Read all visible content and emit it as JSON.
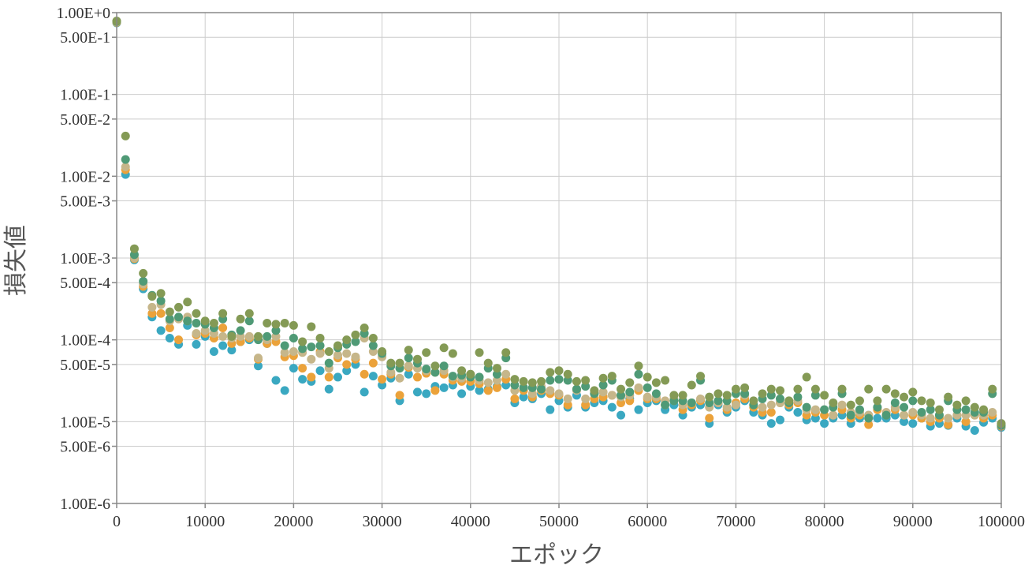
{
  "chart_data": {
    "type": "scatter",
    "title": "",
    "xlabel": "エポック",
    "ylabel": "損失値",
    "xlim": [
      0,
      100000
    ],
    "ylim": [
      1e-06,
      1
    ],
    "yscale": "log",
    "grid": true,
    "legend": "none",
    "x_ticks": [
      "0",
      "10000",
      "20000",
      "30000",
      "40000",
      "50000",
      "60000",
      "70000",
      "80000",
      "90000",
      "100000"
    ],
    "y_ticks": [
      {
        "value": 1,
        "label": "1.00E+0"
      },
      {
        "value": 0.5,
        "label": "5.00E-1"
      },
      {
        "value": 0.1,
        "label": "1.00E-1"
      },
      {
        "value": 0.05,
        "label": "5.00E-2"
      },
      {
        "value": 0.01,
        "label": "1.00E-2"
      },
      {
        "value": 0.005,
        "label": "5.00E-3"
      },
      {
        "value": 0.001,
        "label": "1.00E-3"
      },
      {
        "value": 0.0005,
        "label": "5.00E-4"
      },
      {
        "value": 0.0001,
        "label": "1.00E-4"
      },
      {
        "value": 5e-05,
        "label": "5.00E-5"
      },
      {
        "value": 1e-05,
        "label": "1.00E-5"
      },
      {
        "value": 5e-06,
        "label": "5.00E-6"
      },
      {
        "value": 1e-06,
        "label": "1.00E-6"
      }
    ],
    "colors": {
      "grid": "#cccccc",
      "axis": "#888888"
    },
    "series": [
      {
        "color": "#3aa8c1",
        "x": [
          0,
          1000,
          2000,
          3000,
          4000,
          5000,
          6000,
          7000,
          8000,
          9000,
          10000,
          11000,
          12000,
          13000,
          14000,
          15000,
          16000,
          17000,
          18000,
          19000,
          20000,
          21000,
          22000,
          23000,
          24000,
          25000,
          26000,
          27000,
          28000,
          29000,
          30000,
          31000,
          32000,
          33000,
          34000,
          35000,
          36000,
          37000,
          38000,
          39000,
          40000,
          41000,
          42000,
          43000,
          44000,
          45000,
          46000,
          47000,
          48000,
          49000,
          50000,
          51000,
          52000,
          53000,
          54000,
          55000,
          56000,
          57000,
          58000,
          59000,
          60000,
          61000,
          62000,
          63000,
          64000,
          65000,
          66000,
          67000,
          68000,
          69000,
          70000,
          71000,
          72000,
          73000,
          74000,
          75000,
          76000,
          77000,
          78000,
          79000,
          80000,
          81000,
          82000,
          83000,
          84000,
          85000,
          86000,
          87000,
          88000,
          89000,
          90000,
          91000,
          92000,
          93000,
          94000,
          95000,
          96000,
          97000,
          98000,
          99000,
          100000
        ],
        "y": [
          0.75,
          0.0105,
          0.00095,
          0.00042,
          0.00019,
          0.00013,
          0.000105,
          8.8e-05,
          0.00015,
          8.8e-05,
          0.00011,
          7.2e-05,
          8.5e-05,
          7.5e-05,
          9.5e-05,
          0.0001,
          4.8e-05,
          9e-05,
          3.2e-05,
          2.4e-05,
          4.5e-05,
          3.3e-05,
          3.1e-05,
          4.2e-05,
          2.5e-05,
          3.5e-05,
          4.2e-05,
          5e-05,
          2.3e-05,
          3.6e-05,
          2.8e-05,
          3.4e-05,
          1.8e-05,
          3.8e-05,
          2.3e-05,
          2.2e-05,
          2.7e-05,
          2.6e-05,
          2.8e-05,
          2.2e-05,
          2.7e-05,
          2.4e-05,
          2.5e-05,
          2.7e-05,
          2.8e-05,
          1.7e-05,
          2e-05,
          1.9e-05,
          2.2e-05,
          1.4e-05,
          1.8e-05,
          1.5e-05,
          2.1e-05,
          1.5e-05,
          1.7e-05,
          1.8e-05,
          1.5e-05,
          1.2e-05,
          1.9e-05,
          1.4e-05,
          1.7e-05,
          1.8e-05,
          1.4e-05,
          1.6e-05,
          1.2e-05,
          1.5e-05,
          1.6e-05,
          9.5e-06,
          1.6e-05,
          1.3e-05,
          1.5e-05,
          1.8e-05,
          1.3e-05,
          1.2e-05,
          9.5e-06,
          1.05e-05,
          1.5e-05,
          1.3e-05,
          1.05e-05,
          1.1e-05,
          9.5e-06,
          1.1e-05,
          1.2e-05,
          9.5e-06,
          1.1e-05,
          1.2e-05,
          1.1e-05,
          1.1e-05,
          1.2e-05,
          1e-05,
          9.5e-06,
          1.1e-05,
          8.8e-06,
          9.5e-06,
          9e-06,
          1.1e-05,
          8.8e-06,
          7.8e-06,
          9.8e-06,
          1.1e-05,
          8.5e-06
        ]
      },
      {
        "color": "#eba23a",
        "x": [
          0,
          1000,
          2000,
          3000,
          4000,
          5000,
          6000,
          7000,
          8000,
          9000,
          10000,
          11000,
          12000,
          13000,
          14000,
          15000,
          16000,
          17000,
          18000,
          19000,
          20000,
          21000,
          22000,
          23000,
          24000,
          25000,
          26000,
          27000,
          28000,
          29000,
          30000,
          31000,
          32000,
          33000,
          34000,
          35000,
          36000,
          37000,
          38000,
          39000,
          40000,
          41000,
          42000,
          43000,
          44000,
          45000,
          46000,
          47000,
          48000,
          49000,
          50000,
          51000,
          52000,
          53000,
          54000,
          55000,
          56000,
          57000,
          58000,
          59000,
          60000,
          61000,
          62000,
          63000,
          64000,
          65000,
          66000,
          67000,
          68000,
          69000,
          70000,
          71000,
          72000,
          73000,
          74000,
          75000,
          76000,
          77000,
          78000,
          79000,
          80000,
          81000,
          82000,
          83000,
          84000,
          85000,
          86000,
          87000,
          88000,
          89000,
          90000,
          91000,
          92000,
          93000,
          94000,
          95000,
          96000,
          97000,
          98000,
          99000,
          100000
        ],
        "y": [
          0.76,
          0.012,
          0.00098,
          0.00045,
          0.00021,
          0.00021,
          0.00014,
          0.0001,
          0.00017,
          0.000115,
          0.00012,
          0.000105,
          0.00014,
          9e-05,
          9.5e-05,
          0.000105,
          5.8e-05,
          9e-05,
          9.5e-05,
          6.2e-05,
          6.4e-05,
          4.5e-05,
          3.5e-05,
          7.2e-05,
          3.5e-05,
          6e-05,
          5e-05,
          5.8e-05,
          3.8e-05,
          5.2e-05,
          3.3e-05,
          3.8e-05,
          2.1e-05,
          4.6e-05,
          3.5e-05,
          3.9e-05,
          2.4e-05,
          3.8e-05,
          3.2e-05,
          3.1e-05,
          3.1e-05,
          2.9e-05,
          2.4e-05,
          2.6e-05,
          3.3e-05,
          1.9e-05,
          2.4e-05,
          2e-05,
          2.4e-05,
          2.2e-05,
          2.1e-05,
          1.6e-05,
          2.5e-05,
          1.6e-05,
          1.9e-05,
          2e-05,
          2.1e-05,
          1.7e-05,
          1.8e-05,
          2.4e-05,
          1.9e-05,
          1.9e-05,
          1.6e-05,
          1.8e-05,
          1.4e-05,
          1.6e-05,
          1.8e-05,
          1.1e-05,
          1.7e-05,
          1.4e-05,
          1.7e-05,
          1.9e-05,
          1.5e-05,
          1.3e-05,
          1.3e-05,
          1.7e-05,
          1.6e-05,
          1.7e-05,
          1.2e-05,
          1.3e-05,
          1.2e-05,
          1.2e-05,
          1.4e-05,
          1.1e-05,
          1.2e-05,
          9.2e-06,
          1.4e-05,
          1.2e-05,
          1.4e-05,
          1.2e-05,
          1.2e-05,
          1.1e-05,
          1e-05,
          1.1e-05,
          9.2e-06,
          1.2e-05,
          1e-05,
          1.2e-05,
          1.1e-05,
          1.2e-05,
          8.8e-06
        ]
      },
      {
        "color": "#c6b68a",
        "x": [
          0,
          1000,
          2000,
          3000,
          4000,
          5000,
          6000,
          7000,
          8000,
          9000,
          10000,
          11000,
          12000,
          13000,
          14000,
          15000,
          16000,
          17000,
          18000,
          19000,
          20000,
          21000,
          22000,
          23000,
          24000,
          25000,
          26000,
          27000,
          28000,
          29000,
          30000,
          31000,
          32000,
          33000,
          34000,
          35000,
          36000,
          37000,
          38000,
          39000,
          40000,
          41000,
          42000,
          43000,
          44000,
          45000,
          46000,
          47000,
          48000,
          49000,
          50000,
          51000,
          52000,
          53000,
          54000,
          55000,
          56000,
          57000,
          58000,
          59000,
          60000,
          61000,
          62000,
          63000,
          64000,
          65000,
          66000,
          67000,
          68000,
          69000,
          70000,
          71000,
          72000,
          73000,
          74000,
          75000,
          76000,
          77000,
          78000,
          79000,
          80000,
          81000,
          82000,
          83000,
          84000,
          85000,
          86000,
          87000,
          88000,
          89000,
          90000,
          91000,
          92000,
          93000,
          94000,
          95000,
          96000,
          97000,
          98000,
          99000,
          100000
        ],
        "y": [
          0.77,
          0.013,
          0.001,
          0.00048,
          0.00025,
          0.00027,
          0.00017,
          0.00018,
          0.00019,
          0.00012,
          0.00013,
          0.00012,
          0.00011,
          0.000105,
          0.00011,
          0.00011,
          6e-05,
          0.0001,
          0.00011,
          7e-05,
          7.2e-05,
          7e-05,
          5.8e-05,
          6.8e-05,
          4.5e-05,
          6.5e-05,
          6.8e-05,
          6.2e-05,
          0.000105,
          7.2e-05,
          6.2e-05,
          4e-05,
          3.4e-05,
          4.8e-05,
          4.5e-05,
          4.2e-05,
          4e-05,
          4.2e-05,
          3.5e-05,
          3.4e-05,
          3.8e-05,
          3.2e-05,
          3e-05,
          3.2e-05,
          3.8e-05,
          2.4e-05,
          2.6e-05,
          2.2e-05,
          2.7e-05,
          2.4e-05,
          2.2e-05,
          1.9e-05,
          2.4e-05,
          1.9e-05,
          2.2e-05,
          2.3e-05,
          2.1e-05,
          2e-05,
          2.1e-05,
          2.6e-05,
          2e-05,
          2e-05,
          1.8e-05,
          1.9e-05,
          1.6e-05,
          1.7e-05,
          1.9e-05,
          1.5e-05,
          1.7e-05,
          1.5e-05,
          1.6e-05,
          2.1e-05,
          1.6e-05,
          1.5e-05,
          1.6e-05,
          1.7e-05,
          1.7e-05,
          1.8e-05,
          1.4e-05,
          1.4e-05,
          1.4e-05,
          1.2e-05,
          1.6e-05,
          1.3e-05,
          1.3e-05,
          1.2e-05,
          1.5e-05,
          1.3e-05,
          1.5e-05,
          1.2e-05,
          1.3e-05,
          1.2e-05,
          1.1e-05,
          1.2e-05,
          1.1e-05,
          1.2e-05,
          1.2e-05,
          1.2e-05,
          1.2e-05,
          1.3e-05,
          9.2e-06
        ]
      },
      {
        "color": "#4f9a76",
        "x": [
          0,
          1000,
          2000,
          3000,
          4000,
          5000,
          6000,
          7000,
          8000,
          9000,
          10000,
          11000,
          12000,
          13000,
          14000,
          15000,
          16000,
          17000,
          18000,
          19000,
          20000,
          21000,
          22000,
          23000,
          24000,
          25000,
          26000,
          27000,
          28000,
          29000,
          30000,
          31000,
          32000,
          33000,
          34000,
          35000,
          36000,
          37000,
          38000,
          39000,
          40000,
          41000,
          42000,
          43000,
          44000,
          45000,
          46000,
          47000,
          48000,
          49000,
          50000,
          51000,
          52000,
          53000,
          54000,
          55000,
          56000,
          57000,
          58000,
          59000,
          60000,
          61000,
          62000,
          63000,
          64000,
          65000,
          66000,
          67000,
          68000,
          69000,
          70000,
          71000,
          72000,
          73000,
          74000,
          75000,
          76000,
          77000,
          78000,
          79000,
          80000,
          81000,
          82000,
          83000,
          84000,
          85000,
          86000,
          87000,
          88000,
          89000,
          90000,
          91000,
          92000,
          93000,
          94000,
          95000,
          96000,
          97000,
          98000,
          99000,
          100000
        ],
        "y": [
          0.78,
          0.016,
          0.0011,
          0.00052,
          0.00035,
          0.0003,
          0.00018,
          0.00019,
          0.00017,
          0.00016,
          0.000155,
          0.00014,
          0.00018,
          0.000115,
          0.00013,
          0.00017,
          0.0001,
          0.00011,
          0.00013,
          8.5e-05,
          0.000105,
          7.8e-05,
          8.2e-05,
          8.5e-05,
          5.2e-05,
          8e-05,
          8.8e-05,
          9.5e-05,
          0.00012,
          8.5e-05,
          6.8e-05,
          4.8e-05,
          4.5e-05,
          6e-05,
          5.2e-05,
          4.4e-05,
          4e-05,
          4.8e-05,
          3.6e-05,
          3.7e-05,
          3.5e-05,
          3.5e-05,
          4.5e-05,
          3.8e-05,
          6e-05,
          2.8e-05,
          2.6e-05,
          2.6e-05,
          2.5e-05,
          3.2e-05,
          3.3e-05,
          3.2e-05,
          2.5e-05,
          2.7e-05,
          2.2e-05,
          2.8e-05,
          3.2e-05,
          2.1e-05,
          2.3e-05,
          3.8e-05,
          2.6e-05,
          2.2e-05,
          1.6e-05,
          1.8e-05,
          1.8e-05,
          1.7e-05,
          3.2e-05,
          1.7e-05,
          1.8e-05,
          1.8e-05,
          2.2e-05,
          2.2e-05,
          1.6e-05,
          1.9e-05,
          2.1e-05,
          1.9e-05,
          1.7e-05,
          2e-05,
          1.5e-05,
          2.1e-05,
          1.4e-05,
          1.5e-05,
          2.2e-05,
          1.2e-05,
          1.4e-05,
          1.1e-05,
          1.5e-05,
          1.2e-05,
          1.7e-05,
          1.5e-05,
          1.8e-05,
          1.3e-05,
          1.4e-05,
          1.2e-05,
          1.8e-05,
          1.4e-05,
          1.4e-05,
          1.3e-05,
          1.3e-05,
          2.2e-05,
          9e-06
        ]
      },
      {
        "color": "#849a55",
        "x": [
          0,
          1000,
          2000,
          3000,
          4000,
          5000,
          6000,
          7000,
          8000,
          9000,
          10000,
          11000,
          12000,
          13000,
          14000,
          15000,
          16000,
          17000,
          18000,
          19000,
          20000,
          21000,
          22000,
          23000,
          24000,
          25000,
          26000,
          27000,
          28000,
          29000,
          30000,
          31000,
          32000,
          33000,
          34000,
          35000,
          36000,
          37000,
          38000,
          39000,
          40000,
          41000,
          42000,
          43000,
          44000,
          45000,
          46000,
          47000,
          48000,
          49000,
          50000,
          51000,
          52000,
          53000,
          54000,
          55000,
          56000,
          57000,
          58000,
          59000,
          60000,
          61000,
          62000,
          63000,
          64000,
          65000,
          66000,
          67000,
          68000,
          69000,
          70000,
          71000,
          72000,
          73000,
          74000,
          75000,
          76000,
          77000,
          78000,
          79000,
          80000,
          81000,
          82000,
          83000,
          84000,
          85000,
          86000,
          87000,
          88000,
          89000,
          90000,
          91000,
          92000,
          93000,
          94000,
          95000,
          96000,
          97000,
          98000,
          99000,
          100000
        ],
        "y": [
          0.79,
          0.031,
          0.0013,
          0.00065,
          0.00034,
          0.00037,
          0.00022,
          0.00025,
          0.00029,
          0.00021,
          0.00017,
          0.00016,
          0.00021,
          0.00011,
          0.00018,
          0.00021,
          0.00011,
          0.00016,
          0.000155,
          0.00016,
          0.00015,
          9.5e-05,
          0.000145,
          0.000105,
          7.2e-05,
          8.5e-05,
          0.0001,
          0.000115,
          0.00014,
          0.000105,
          7.2e-05,
          5.2e-05,
          5.2e-05,
          7.5e-05,
          5.8e-05,
          7e-05,
          4.8e-05,
          8e-05,
          6.8e-05,
          4.2e-05,
          3.8e-05,
          7e-05,
          5.2e-05,
          4.5e-05,
          7e-05,
          3.3e-05,
          3.1e-05,
          3e-05,
          3.1e-05,
          4e-05,
          4.2e-05,
          3.8e-05,
          3.1e-05,
          3.2e-05,
          2.4e-05,
          3.4e-05,
          3.6e-05,
          2.5e-05,
          3e-05,
          4.8e-05,
          3.5e-05,
          3e-05,
          3.2e-05,
          2.1e-05,
          2.1e-05,
          2.8e-05,
          3.6e-05,
          2e-05,
          2.2e-05,
          2.1e-05,
          2.5e-05,
          2.6e-05,
          1.8e-05,
          2.2e-05,
          2.5e-05,
          2.4e-05,
          1.8e-05,
          2.5e-05,
          3.5e-05,
          2.5e-05,
          2.1e-05,
          1.7e-05,
          2.5e-05,
          1.6e-05,
          1.8e-05,
          2.5e-05,
          1.8e-05,
          2.5e-05,
          2.2e-05,
          2e-05,
          2.3e-05,
          1.8e-05,
          1.7e-05,
          1.4e-05,
          2e-05,
          1.6e-05,
          1.8e-05,
          1.5e-05,
          1.4e-05,
          2.5e-05,
          9.5e-06
        ]
      }
    ]
  }
}
